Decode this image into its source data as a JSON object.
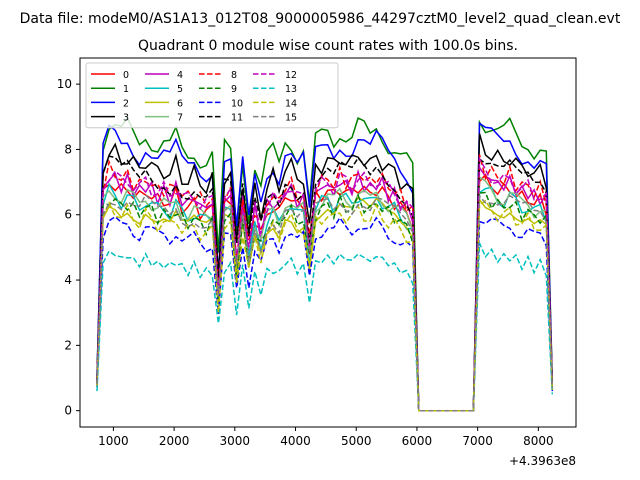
{
  "figure": {
    "suptitle": "Data file: modeM0/AS1A13_012T08_9000005986_44297cztM0_level2_quad_clean.evt",
    "title": "Quadrant 0 module wise count rates with 100.0s bins.",
    "x_offset_label": "+4.3963e8"
  },
  "chart_data": {
    "type": "line",
    "title": "Quadrant 0 module wise count rates with 100.0s bins.",
    "xlabel": "",
    "ylabel": "",
    "x_offset": 439630000,
    "xlim": [
      450,
      8620
    ],
    "ylim": [
      -0.5,
      10.8
    ],
    "xticks": [
      1000,
      2000,
      3000,
      4000,
      5000,
      6000,
      7000,
      8000
    ],
    "yticks": [
      0,
      2,
      4,
      6,
      8,
      10
    ],
    "grid": false,
    "legend": {
      "placement": "top-left",
      "columns": 4
    },
    "x": [
      730,
      830,
      930,
      1030,
      1130,
      1230,
      1330,
      1430,
      1530,
      1630,
      1730,
      1830,
      1930,
      2030,
      2130,
      2230,
      2330,
      2430,
      2530,
      2630,
      2730,
      2830,
      2930,
      3030,
      3130,
      3230,
      3330,
      3430,
      3530,
      3630,
      3730,
      3830,
      3930,
      4030,
      4130,
      4230,
      4330,
      4430,
      4530,
      4630,
      4730,
      4830,
      4930,
      5030,
      5130,
      5230,
      5330,
      5430,
      5530,
      5630,
      5730,
      5830,
      5930,
      6030,
      6930,
      7030,
      7130,
      7230,
      7330,
      7430,
      7530,
      7630,
      7730,
      7830,
      7930,
      8030,
      8130,
      8230
    ],
    "profile": [
      0.12,
      0.91,
      0.97,
      0.96,
      0.93,
      0.95,
      0.92,
      0.9,
      0.94,
      0.91,
      0.89,
      0.9,
      0.88,
      0.92,
      0.87,
      0.86,
      0.88,
      0.85,
      0.84,
      0.86,
      0.5,
      0.88,
      0.87,
      0.62,
      0.86,
      0.66,
      0.82,
      0.74,
      0.84,
      0.87,
      0.83,
      0.92,
      0.91,
      0.86,
      0.88,
      0.68,
      0.9,
      0.92,
      0.94,
      0.91,
      0.95,
      0.93,
      0.92,
      0.96,
      0.94,
      0.91,
      0.95,
      0.93,
      0.9,
      0.89,
      0.86,
      0.84,
      0.8,
      0,
      0,
      1.0,
      0.97,
      0.96,
      0.94,
      0.93,
      0.95,
      0.92,
      0.9,
      0.91,
      0.88,
      0.89,
      0.86,
      0.1
    ],
    "series": [
      {
        "name": "0",
        "color": "#ff0000",
        "dash": "solid",
        "level": 7.2
      },
      {
        "name": "1",
        "color": "#008000",
        "dash": "solid",
        "level": 9.1
      },
      {
        "name": "2",
        "color": "#0000ff",
        "dash": "solid",
        "level": 8.7
      },
      {
        "name": "3",
        "color": "#000000",
        "dash": "solid",
        "level": 8.2
      },
      {
        "name": "4",
        "color": "#bf00bf",
        "dash": "solid",
        "level": 7.4
      },
      {
        "name": "5",
        "color": "#00bfbf",
        "dash": "solid",
        "level": 6.9
      },
      {
        "name": "6",
        "color": "#bfbf00",
        "dash": "solid",
        "level": 6.6
      },
      {
        "name": "7",
        "color": "#7fbf7f",
        "dash": "solid",
        "level": 7.0
      },
      {
        "name": "8",
        "color": "#ff0000",
        "dash": "dashed",
        "level": 7.6
      },
      {
        "name": "9",
        "color": "#008000",
        "dash": "dashed",
        "level": 6.7
      },
      {
        "name": "10",
        "color": "#0000ff",
        "dash": "dashed",
        "level": 6.0
      },
      {
        "name": "11",
        "color": "#000000",
        "dash": "dashed",
        "level": 7.8
      },
      {
        "name": "12",
        "color": "#bf00bf",
        "dash": "dashed",
        "level": 7.5
      },
      {
        "name": "13",
        "color": "#00bfbf",
        "dash": "dashed",
        "level": 5.0
      },
      {
        "name": "14",
        "color": "#bfbf00",
        "dash": "dashed",
        "level": 6.4
      },
      {
        "name": "15",
        "color": "#808080",
        "dash": "dashed",
        "level": 6.8
      }
    ]
  }
}
